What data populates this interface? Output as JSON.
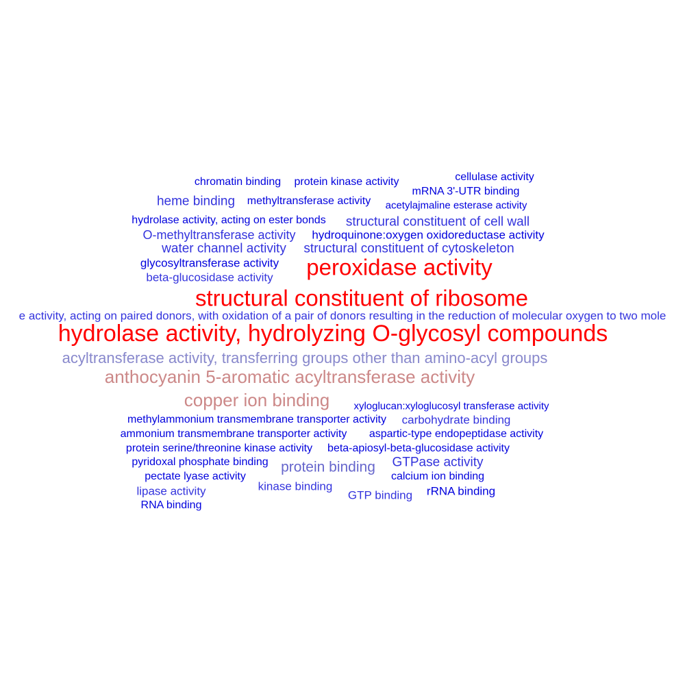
{
  "colors": {
    "background": "#ffffff",
    "red": "#ff0000",
    "blue": "#0000dd",
    "mid_blue": "#3333dd",
    "periwinkle": "#6666cc",
    "lavender": "#8888cc",
    "pink": "#cc8888"
  },
  "words": [
    {
      "text": "chromatin binding",
      "color": "#0000dd",
      "weight": 1
    },
    {
      "text": "protein kinase activity",
      "color": "#0000dd",
      "weight": 1
    },
    {
      "text": "cellulase activity",
      "color": "#0000dd",
      "weight": 1
    },
    {
      "text": "mRNA 3'-UTR binding",
      "color": "#0000dd",
      "weight": 1
    },
    {
      "text": "heme binding",
      "color": "#3333dd",
      "weight": 2
    },
    {
      "text": "methyltransferase activity",
      "color": "#0000dd",
      "weight": 1
    },
    {
      "text": "acetylajmaline esterase activity",
      "color": "#0000dd",
      "weight": 1
    },
    {
      "text": "hydrolase activity, acting on ester bonds",
      "color": "#0000dd",
      "weight": 1
    },
    {
      "text": "structural constituent of cell wall",
      "color": "#3333dd",
      "weight": 2
    },
    {
      "text": "O-methyltransferase activity",
      "color": "#3333dd",
      "weight": 2
    },
    {
      "text": "hydroquinone:oxygen oxidoreductase activity",
      "color": "#0000dd",
      "weight": 1
    },
    {
      "text": "water channel activity",
      "color": "#3333dd",
      "weight": 2
    },
    {
      "text": "structural constituent of cytoskeleton",
      "color": "#3333dd",
      "weight": 2
    },
    {
      "text": "glycosyltransferase activity",
      "color": "#0000dd",
      "weight": 1
    },
    {
      "text": "peroxidase activity",
      "color": "#ff0000",
      "weight": 5
    },
    {
      "text": "beta-glucosidase activity",
      "color": "#3333dd",
      "weight": 1
    },
    {
      "text": "structural constituent of ribosome",
      "color": "#ff0000",
      "weight": 5
    },
    {
      "text": "e activity, acting on paired donors, with oxidation of a pair of donors resulting in the reduction of molecular oxygen to two mole",
      "color": "#3333dd",
      "weight": 1
    },
    {
      "text": "hydrolase activity, hydrolyzing O-glycosyl compounds",
      "color": "#ff0000",
      "weight": 5
    },
    {
      "text": "acyltransferase activity, transferring groups other than amino-acyl groups",
      "color": "#8888cc",
      "weight": 3
    },
    {
      "text": "anthocyanin 5-aromatic acyltransferase activity",
      "color": "#cc8888",
      "weight": 3
    },
    {
      "text": "copper ion binding",
      "color": "#cc8888",
      "weight": 3
    },
    {
      "text": "xyloglucan:xyloglucosyl transferase activity",
      "color": "#0000dd",
      "weight": 1
    },
    {
      "text": "methylammonium transmembrane transporter activity",
      "color": "#0000dd",
      "weight": 1
    },
    {
      "text": "carbohydrate binding",
      "color": "#3333dd",
      "weight": 1
    },
    {
      "text": "ammonium transmembrane transporter activity",
      "color": "#0000dd",
      "weight": 1
    },
    {
      "text": "aspartic-type endopeptidase activity",
      "color": "#0000dd",
      "weight": 1
    },
    {
      "text": "protein serine/threonine kinase activity",
      "color": "#0000dd",
      "weight": 1
    },
    {
      "text": "beta-apiosyl-beta-glucosidase activity",
      "color": "#0000dd",
      "weight": 1
    },
    {
      "text": "pyridoxal phosphate binding",
      "color": "#0000dd",
      "weight": 1
    },
    {
      "text": "protein binding",
      "color": "#6666cc",
      "weight": 2
    },
    {
      "text": "GTPase activity",
      "color": "#3333dd",
      "weight": 2
    },
    {
      "text": "pectate lyase activity",
      "color": "#0000dd",
      "weight": 1
    },
    {
      "text": "calcium ion binding",
      "color": "#0000dd",
      "weight": 1
    },
    {
      "text": "lipase activity",
      "color": "#3333dd",
      "weight": 1
    },
    {
      "text": "kinase binding",
      "color": "#3333dd",
      "weight": 1
    },
    {
      "text": "GTP binding",
      "color": "#3333dd",
      "weight": 1
    },
    {
      "text": "rRNA binding",
      "color": "#0000dd",
      "weight": 1
    },
    {
      "text": "RNA binding",
      "color": "#0000dd",
      "weight": 1
    }
  ]
}
